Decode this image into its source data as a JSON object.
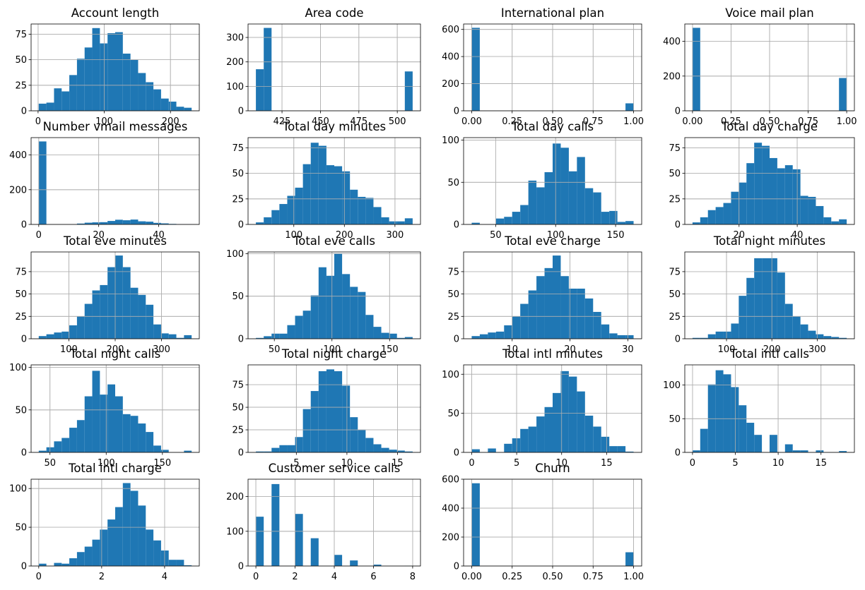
{
  "chart_data": [
    {
      "type": "bar",
      "title": "Account length",
      "bins": {
        "min": 1,
        "max": 232
      },
      "xticks": [
        0,
        100,
        200
      ],
      "yticks": [
        0,
        25,
        50,
        75
      ],
      "ylim": [
        0,
        85
      ],
      "values": [
        7,
        8,
        22,
        19,
        35,
        51,
        62,
        81,
        66,
        76,
        77,
        56,
        50,
        37,
        28,
        21,
        12,
        9,
        4,
        3
      ],
      "grid": true,
      "color": "#1f77b4"
    },
    {
      "type": "bar",
      "title": "Area code",
      "bins": {
        "min": 408,
        "max": 510
      },
      "xticks": [
        425,
        450,
        475,
        500
      ],
      "yticks": [
        0,
        100,
        200,
        300
      ],
      "ylim": [
        0,
        355
      ],
      "values": [
        170,
        339,
        0,
        0,
        0,
        0,
        0,
        0,
        0,
        0,
        0,
        0,
        0,
        0,
        0,
        0,
        0,
        0,
        0,
        161
      ],
      "grid": true,
      "color": "#1f77b4"
    },
    {
      "type": "bar",
      "title": "International plan",
      "bins": {
        "min": 0,
        "max": 1
      },
      "xticks": [
        0.0,
        0.25,
        0.5,
        0.75,
        1.0
      ],
      "yticks": [
        0,
        200,
        400,
        600
      ],
      "ylim": [
        0,
        640
      ],
      "values": [
        612,
        0,
        0,
        0,
        0,
        0,
        0,
        0,
        0,
        0,
        0,
        0,
        0,
        0,
        0,
        0,
        0,
        0,
        0,
        55
      ],
      "grid": true,
      "color": "#1f77b4"
    },
    {
      "type": "bar",
      "title": "Voice mail plan",
      "bins": {
        "min": 0,
        "max": 1
      },
      "xticks": [
        0.0,
        0.25,
        0.5,
        0.75,
        1.0
      ],
      "yticks": [
        0,
        200,
        400
      ],
      "ylim": [
        0,
        500
      ],
      "values": [
        478,
        0,
        0,
        0,
        0,
        0,
        0,
        0,
        0,
        0,
        0,
        0,
        0,
        0,
        0,
        0,
        0,
        0,
        0,
        189
      ],
      "grid": true,
      "color": "#1f77b4"
    },
    {
      "type": "bar",
      "title": "Number vmail messages",
      "bins": {
        "min": 0,
        "max": 51
      },
      "xticks": [
        0,
        20,
        40
      ],
      "yticks": [
        0,
        200,
        400
      ],
      "ylim": [
        0,
        500
      ],
      "values": [
        478,
        0,
        0,
        0,
        0,
        5,
        10,
        12,
        13,
        20,
        27,
        24,
        28,
        18,
        16,
        9,
        6,
        3,
        1,
        1
      ],
      "grid": true,
      "color": "#1f77b4"
    },
    {
      "type": "bar",
      "title": "Total day minutes",
      "bins": {
        "min": 25,
        "max": 335
      },
      "xticks": [
        100,
        200,
        300
      ],
      "yticks": [
        0,
        25,
        50,
        75
      ],
      "ylim": [
        0,
        85
      ],
      "values": [
        2,
        7,
        14,
        20,
        28,
        36,
        59,
        80,
        77,
        58,
        57,
        52,
        34,
        27,
        26,
        17,
        7,
        3,
        3,
        6
      ],
      "grid": true,
      "color": "#1f77b4"
    },
    {
      "type": "bar",
      "title": "Total day calls",
      "bins": {
        "min": 30,
        "max": 165
      },
      "xticks": [
        50,
        100,
        150
      ],
      "yticks": [
        0,
        50,
        100
      ],
      "ylim": [
        0,
        103
      ],
      "values": [
        2,
        0,
        0,
        7,
        9,
        15,
        23,
        52,
        44,
        62,
        96,
        91,
        63,
        80,
        43,
        38,
        15,
        16,
        3,
        4
      ],
      "grid": true,
      "color": "#1f77b4"
    },
    {
      "type": "bar",
      "title": "Total day charge",
      "bins": {
        "min": 4,
        "max": 57
      },
      "xticks": [
        20,
        40
      ],
      "yticks": [
        0,
        25,
        50,
        75
      ],
      "ylim": [
        0,
        85
      ],
      "values": [
        2,
        7,
        14,
        17,
        21,
        32,
        41,
        60,
        80,
        77,
        65,
        55,
        58,
        54,
        28,
        27,
        18,
        7,
        3,
        5
      ],
      "grid": true,
      "color": "#1f77b4"
    },
    {
      "type": "bar",
      "title": "Total eve minutes",
      "bins": {
        "min": 35,
        "max": 365
      },
      "xticks": [
        100,
        200,
        300
      ],
      "yticks": [
        0,
        25,
        50,
        75
      ],
      "ylim": [
        0,
        97
      ],
      "values": [
        3,
        5,
        7,
        8,
        15,
        25,
        39,
        54,
        60,
        80,
        93,
        80,
        57,
        49,
        38,
        16,
        6,
        5,
        1,
        4
      ],
      "grid": true,
      "color": "#1f77b4"
    },
    {
      "type": "bar",
      "title": "Total eve calls",
      "bins": {
        "min": 34,
        "max": 170
      },
      "xticks": [
        50,
        100,
        150
      ],
      "yticks": [
        0,
        50,
        100
      ],
      "ylim": [
        0,
        102
      ],
      "values": [
        1,
        3,
        6,
        6,
        16,
        27,
        33,
        51,
        84,
        74,
        100,
        76,
        61,
        55,
        28,
        14,
        7,
        6,
        1,
        2
      ],
      "grid": true,
      "color": "#1f77b4"
    },
    {
      "type": "bar",
      "title": "Total eve charge",
      "bins": {
        "min": 3,
        "max": 31
      },
      "xticks": [
        10,
        20,
        30
      ],
      "yticks": [
        0,
        25,
        50,
        75
      ],
      "ylim": [
        0,
        97
      ],
      "values": [
        3,
        5,
        7,
        8,
        15,
        25,
        39,
        54,
        70,
        79,
        93,
        70,
        56,
        56,
        45,
        30,
        16,
        6,
        4,
        4
      ],
      "grid": true,
      "color": "#1f77b4"
    },
    {
      "type": "bar",
      "title": "Total night minutes",
      "bins": {
        "min": 25,
        "max": 365
      },
      "xticks": [
        100,
        200,
        300
      ],
      "yticks": [
        0,
        25,
        50,
        75
      ],
      "ylim": [
        0,
        97
      ],
      "values": [
        1,
        1,
        5,
        8,
        8,
        17,
        48,
        68,
        90,
        90,
        90,
        74,
        39,
        25,
        16,
        9,
        5,
        3,
        2,
        1
      ],
      "grid": true,
      "color": "#1f77b4"
    },
    {
      "type": "bar",
      "title": "Total night calls",
      "bins": {
        "min": 40,
        "max": 176
      },
      "xticks": [
        50,
        100,
        150
      ],
      "yticks": [
        0,
        50,
        100
      ],
      "ylim": [
        0,
        103
      ],
      "values": [
        2,
        6,
        13,
        17,
        29,
        38,
        66,
        96,
        68,
        80,
        66,
        45,
        43,
        34,
        24,
        8,
        3,
        0,
        0,
        2
      ],
      "grid": true,
      "color": "#1f77b4"
    },
    {
      "type": "bar",
      "title": "Total night charge",
      "bins": {
        "min": 1,
        "max": 16.5
      },
      "xticks": [
        5,
        10,
        15
      ],
      "yticks": [
        0,
        25,
        50,
        75
      ],
      "ylim": [
        0,
        97
      ],
      "values": [
        1,
        1,
        5,
        8,
        8,
        17,
        48,
        68,
        90,
        92,
        90,
        74,
        39,
        25,
        16,
        9,
        5,
        3,
        2,
        1
      ],
      "grid": true,
      "color": "#1f77b4"
    },
    {
      "type": "bar",
      "title": "Total intl minutes",
      "bins": {
        "min": 0,
        "max": 18
      },
      "xticks": [
        0,
        5,
        10,
        15
      ],
      "yticks": [
        0,
        50,
        100
      ],
      "ylim": [
        0,
        112
      ],
      "values": [
        4,
        0,
        5,
        0,
        11,
        18,
        30,
        33,
        46,
        58,
        76,
        104,
        97,
        78,
        47,
        33,
        20,
        8,
        8,
        1
      ],
      "grid": true,
      "color": "#1f77b4"
    },
    {
      "type": "bar",
      "title": "Total intl calls",
      "bins": {
        "min": 0,
        "max": 18
      },
      "xticks": [
        0,
        5,
        10,
        15
      ],
      "yticks": [
        0,
        50,
        100
      ],
      "ylim": [
        0,
        130
      ],
      "values": [
        3,
        35,
        101,
        122,
        116,
        97,
        70,
        44,
        26,
        0,
        26,
        0,
        12,
        3,
        3,
        0,
        3,
        0,
        0,
        2
      ],
      "grid": true,
      "color": "#1f77b4"
    },
    {
      "type": "bar",
      "title": "Total intl charge",
      "bins": {
        "min": 0,
        "max": 4.86
      },
      "xticks": [
        0,
        2,
        4
      ],
      "yticks": [
        0,
        50,
        100
      ],
      "ylim": [
        0,
        112
      ],
      "values": [
        3,
        0,
        4,
        3,
        10,
        18,
        25,
        34,
        47,
        60,
        76,
        107,
        97,
        78,
        47,
        33,
        20,
        8,
        8,
        1
      ],
      "grid": true,
      "color": "#1f77b4"
    },
    {
      "type": "bar",
      "title": "Customer service calls",
      "bins": {
        "min": 0,
        "max": 8
      },
      "xticks": [
        0,
        2,
        4,
        6,
        8
      ],
      "yticks": [
        0,
        100,
        200
      ],
      "ylim": [
        0,
        250
      ],
      "values": [
        142,
        0,
        236,
        0,
        0,
        150,
        0,
        80,
        0,
        0,
        32,
        0,
        16,
        0,
        0,
        4,
        0,
        0,
        0,
        1
      ],
      "grid": true,
      "color": "#1f77b4"
    },
    {
      "type": "bar",
      "title": "Churn",
      "bins": {
        "min": 0,
        "max": 1
      },
      "xticks": [
        0.0,
        0.25,
        0.5,
        0.75,
        1.0
      ],
      "yticks": [
        0,
        200,
        400,
        600
      ],
      "ylim": [
        0,
        600
      ],
      "values": [
        572,
        0,
        0,
        0,
        0,
        0,
        0,
        0,
        0,
        0,
        0,
        0,
        0,
        0,
        0,
        0,
        0,
        0,
        0,
        95
      ],
      "grid": true,
      "color": "#1f77b4"
    }
  ]
}
